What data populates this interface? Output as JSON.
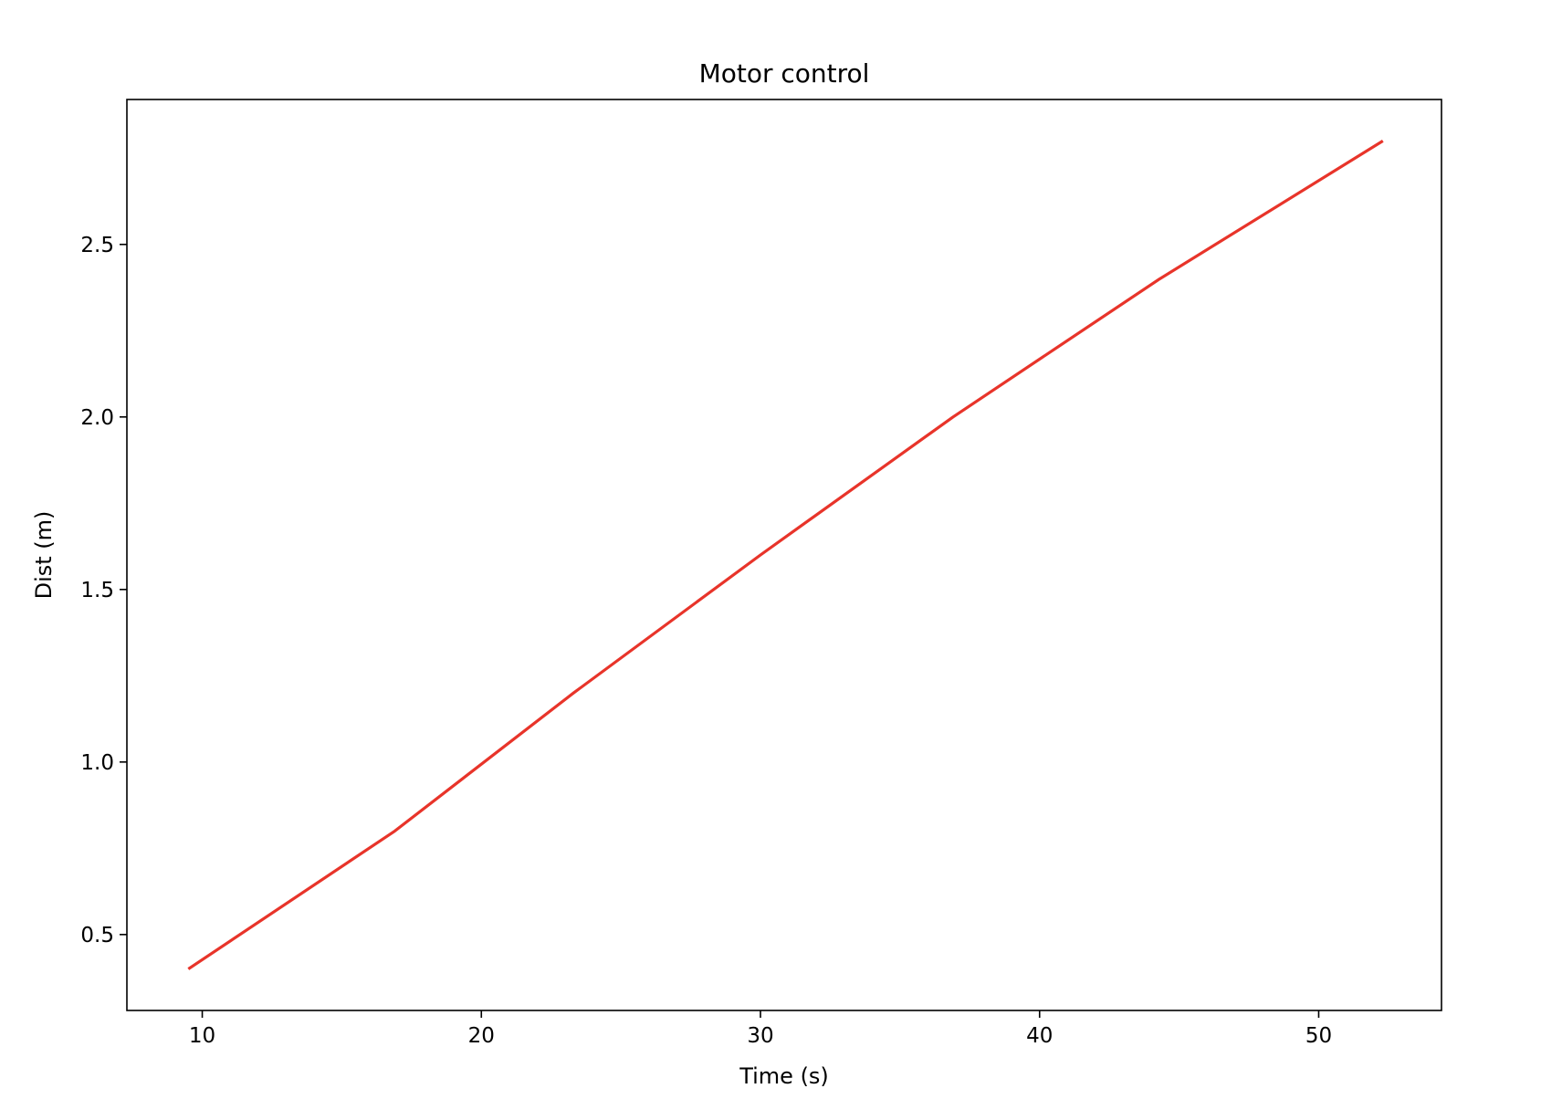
{
  "chart_data": {
    "type": "line",
    "title": "Motor control",
    "xlabel": "Time (s)",
    "ylabel": "Dist (m)",
    "xlim": [
      7.3,
      54.4
    ],
    "ylim": [
      0.28,
      2.92
    ],
    "xticks": [
      10,
      20,
      30,
      40,
      50
    ],
    "xtick_labels": [
      "10",
      "20",
      "30",
      "40",
      "50"
    ],
    "yticks": [
      0.5,
      1.0,
      1.5,
      2.0,
      2.5
    ],
    "ytick_labels": [
      "0.5",
      "1.0",
      "1.5",
      "2.0",
      "2.5"
    ],
    "grid": false,
    "series": [
      {
        "color": "#e8342a",
        "x": [
          9.5,
          16.9,
          23.3,
          30.0,
          36.9,
          44.3,
          52.3
        ],
        "y": [
          0.4,
          0.8,
          1.2,
          1.6,
          2.0,
          2.4,
          2.8
        ]
      }
    ]
  }
}
